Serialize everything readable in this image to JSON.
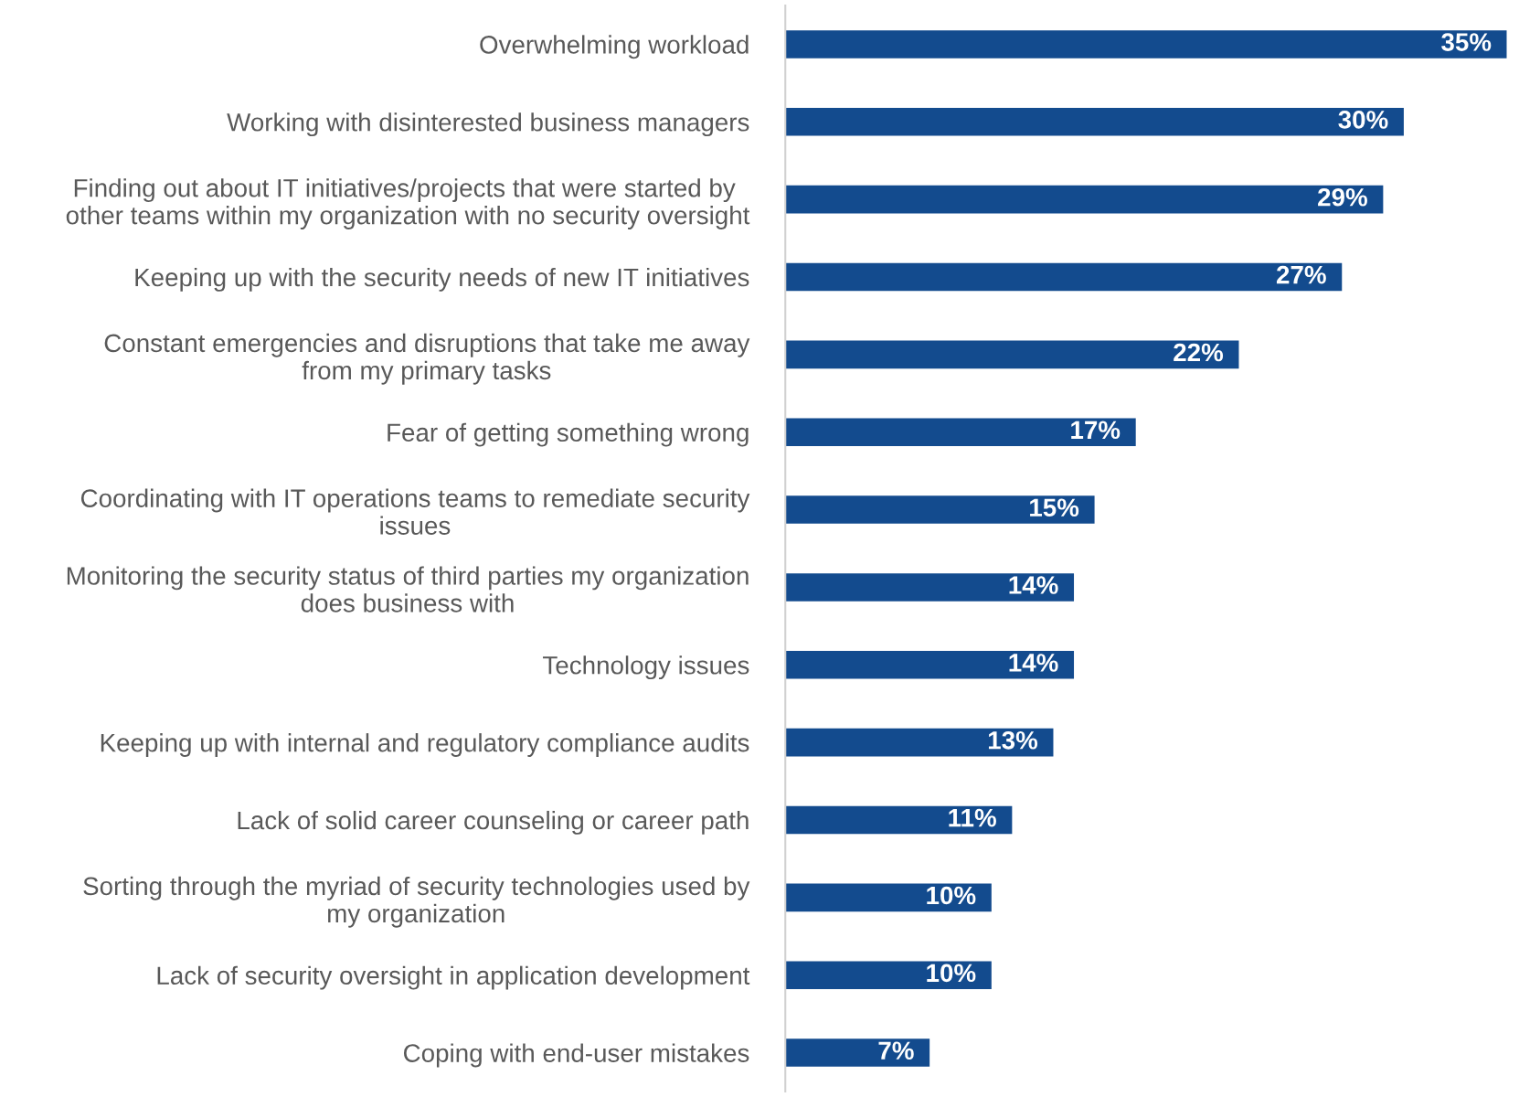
{
  "chart_data": {
    "type": "bar",
    "orientation": "horizontal",
    "categories": [
      "Overwhelming workload",
      "Working with disinterested business managers",
      "Finding out about IT initiatives/projects that were started by \nother teams within my organization with no security oversight",
      "Keeping up with the security needs of new IT initiatives",
      "Constant emergencies and disruptions that take me away\nfrom my primary tasks",
      "Fear of getting something wrong",
      "Coordinating with IT operations teams to remediate security\nissues",
      "Monitoring the security status of third parties my organization\ndoes business with",
      "Technology issues",
      "Keeping up with internal and regulatory compliance audits",
      "Lack of solid career counseling or career path",
      "Sorting through the myriad of security technologies used by\nmy organization",
      "Lack of security oversight in application development",
      "Coping with end-user mistakes"
    ],
    "values": [
      35,
      30,
      29,
      27,
      22,
      17,
      15,
      14,
      14,
      13,
      11,
      10,
      10,
      7
    ],
    "value_labels": [
      "35%",
      "30%",
      "29%",
      "27%",
      "22%",
      "17%",
      "15%",
      "14%",
      "14%",
      "13%",
      "11%",
      "10%",
      "10%",
      "7%"
    ],
    "color": "#134b8e",
    "xlim": [
      0,
      35
    ],
    "tick_labels": "y",
    "grid": false,
    "legend": false
  }
}
